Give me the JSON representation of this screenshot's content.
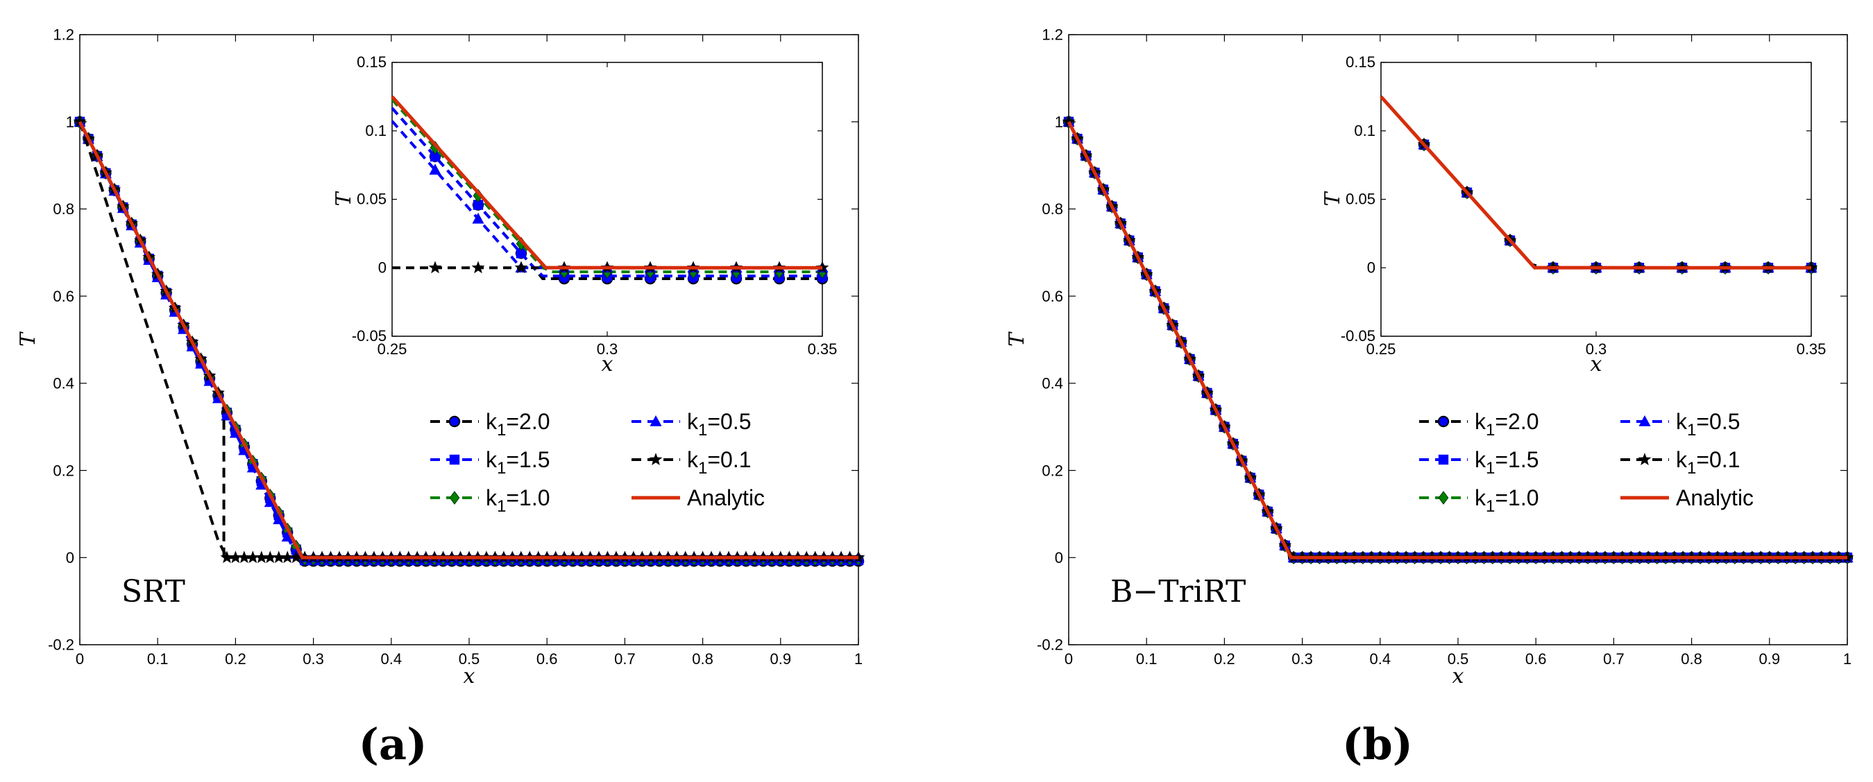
{
  "caption_a": "(a)",
  "caption_b": "(b)",
  "chart_data": [
    {
      "id": "a",
      "type": "line",
      "panel_label": "SRT",
      "xlabel": "x",
      "ylabel": "T",
      "xlim": [
        0,
        1
      ],
      "ylim": [
        -0.2,
        1.2
      ],
      "xticks": [
        "0",
        "0.1",
        "0.2",
        "0.3",
        "0.4",
        "0.5",
        "0.6",
        "0.7",
        "0.8",
        "0.9",
        "1"
      ],
      "yticks": [
        "-0.2",
        "0",
        "0.2",
        "0.4",
        "0.6",
        "0.8",
        "1",
        "1.2"
      ],
      "legend_placement": "center-right",
      "series": [
        {
          "name": "k1=2.0",
          "label_main": "k",
          "label_sub": "1",
          "label_rest": "=2.0",
          "color": "#000000",
          "marker": "circle",
          "style": "dashed",
          "front": 0.283,
          "undershoot": -0.008
        },
        {
          "name": "k1=1.5",
          "label_main": "k",
          "label_sub": "1",
          "label_rest": "=1.5",
          "color": "#0000ff",
          "marker": "square",
          "style": "dashed",
          "front": 0.283,
          "undershoot": -0.006
        },
        {
          "name": "k1=1.0",
          "label_main": "k",
          "label_sub": "1",
          "label_rest": "=1.0",
          "color": "#008000",
          "marker": "diamond",
          "style": "dashed",
          "front": 0.285,
          "undershoot": -0.003
        },
        {
          "name": "k1=0.5",
          "label_main": "k",
          "label_sub": "1",
          "label_rest": "=0.5",
          "color": "#0000ff",
          "marker": "triangle",
          "style": "dashed",
          "front": 0.28,
          "undershoot": 0.0
        },
        {
          "name": "k1=0.1",
          "label_main": "k",
          "label_sub": "1",
          "label_rest": "=0.1",
          "color": "#000000",
          "marker": "star",
          "style": "dashed",
          "front": 0.185,
          "undershoot": 0.0
        },
        {
          "name": "Analytic",
          "label_main": "Analytic",
          "label_sub": "",
          "label_rest": "",
          "color": "#d62d0a",
          "marker": "none",
          "style": "solid",
          "front": 0.2857,
          "undershoot": 0.0
        }
      ],
      "inset": {
        "xlabel": "x",
        "ylabel": "T",
        "xlim": [
          0.25,
          0.35
        ],
        "ylim": [
          -0.05,
          0.15
        ],
        "xticks": [
          "0.25",
          "0.3",
          "0.35"
        ],
        "yticks": [
          "-0.05",
          "0",
          "0.05",
          "0.1",
          "0.15"
        ]
      }
    },
    {
      "id": "b",
      "type": "line",
      "panel_label": "B−TriRT",
      "xlabel": "x",
      "ylabel": "T",
      "xlim": [
        0,
        1
      ],
      "ylim": [
        -0.2,
        1.2
      ],
      "xticks": [
        "0",
        "0.1",
        "0.2",
        "0.3",
        "0.4",
        "0.5",
        "0.6",
        "0.7",
        "0.8",
        "0.9",
        "1"
      ],
      "yticks": [
        "-0.2",
        "0",
        "0.2",
        "0.4",
        "0.6",
        "0.8",
        "1",
        "1.2"
      ],
      "legend_placement": "center-right",
      "series": [
        {
          "name": "k1=2.0",
          "label_main": "k",
          "label_sub": "1",
          "label_rest": "=2.0",
          "color": "#000000",
          "marker": "circle",
          "style": "dashed",
          "front": 0.2857,
          "undershoot": 0.0
        },
        {
          "name": "k1=1.5",
          "label_main": "k",
          "label_sub": "1",
          "label_rest": "=1.5",
          "color": "#0000ff",
          "marker": "square",
          "style": "dashed",
          "front": 0.2857,
          "undershoot": 0.0
        },
        {
          "name": "k1=1.0",
          "label_main": "k",
          "label_sub": "1",
          "label_rest": "=1.0",
          "color": "#008000",
          "marker": "diamond",
          "style": "dashed",
          "front": 0.2857,
          "undershoot": 0.0
        },
        {
          "name": "k1=0.5",
          "label_main": "k",
          "label_sub": "1",
          "label_rest": "=0.5",
          "color": "#0000ff",
          "marker": "triangle",
          "style": "dashed",
          "front": 0.2857,
          "undershoot": 0.0
        },
        {
          "name": "k1=0.1",
          "label_main": "k",
          "label_sub": "1",
          "label_rest": "=0.1",
          "color": "#000000",
          "marker": "star",
          "style": "dashed",
          "front": 0.2857,
          "undershoot": 0.0
        },
        {
          "name": "Analytic",
          "label_main": "Analytic",
          "label_sub": "",
          "label_rest": "",
          "color": "#d62d0a",
          "marker": "none",
          "style": "solid",
          "front": 0.2857,
          "undershoot": 0.0
        }
      ],
      "inset": {
        "xlabel": "x",
        "ylabel": "T",
        "xlim": [
          0.25,
          0.35
        ],
        "ylim": [
          -0.05,
          0.15
        ],
        "xticks": [
          "0.25",
          "0.3",
          "0.35"
        ],
        "yticks": [
          "-0.05",
          "0",
          "0.05",
          "0.1",
          "0.15"
        ]
      }
    }
  ]
}
